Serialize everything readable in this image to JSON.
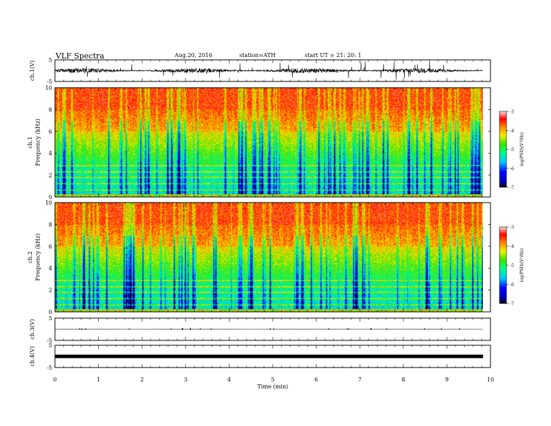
{
  "header": {
    "title": "VLF  Spectra",
    "date": "Aug.20, 2016",
    "station": "station=ATH",
    "start": "start  UT =    21: 20: 1"
  },
  "chart_data": {
    "type": "heatmap",
    "x_axis": {
      "label": "Time  (min)",
      "range": [
        0,
        10
      ],
      "ticks": [
        "0",
        "1",
        "2",
        "3",
        "4",
        "5",
        "6",
        "7",
        "8",
        "9",
        "10"
      ],
      "data_extent": [
        0,
        9.83
      ]
    },
    "panels": [
      {
        "id": "ch1_waveform",
        "type": "line",
        "ylabel": "ch.1(V)",
        "ylim": [
          -5,
          5
        ],
        "yticks": [
          "5",
          "-5"
        ],
        "level": 0,
        "amplitude": 2.2
      },
      {
        "id": "ch1_spectrogram",
        "type": "heatmap",
        "ylabel_top": "ch.1",
        "ylabel": "Frequency  (kHz)",
        "ylim": [
          0,
          10
        ],
        "yticks": [
          "0",
          "2",
          "4",
          "6",
          "8",
          "10"
        ],
        "colorbar": {
          "label": "log(PSD)(V²/Hz)",
          "range": [
            -7,
            -3
          ],
          "ticks": [
            "-3",
            "-4",
            "-5",
            "-6",
            "-7"
          ]
        }
      },
      {
        "id": "ch2_spectrogram",
        "type": "heatmap",
        "ylabel_top": "ch.2",
        "ylabel": "Frequency  (kHz)",
        "ylim": [
          0,
          10
        ],
        "yticks": [
          "0",
          "2",
          "4",
          "6",
          "8",
          "10"
        ],
        "colorbar": {
          "label": "log(PSD)(V²/Hz)",
          "range": [
            -7,
            -3
          ],
          "ticks": [
            "-3",
            "-4",
            "-5",
            "-6",
            "-7"
          ]
        }
      },
      {
        "id": "ch3_waveform",
        "type": "line",
        "ylabel": "ch.3(V)",
        "ylim": [
          -5,
          5
        ],
        "yticks": [
          "5",
          "-5"
        ],
        "level": 0,
        "amplitude": 0.05
      },
      {
        "id": "ch4_waveform",
        "type": "line",
        "ylabel": "ch.4(V)",
        "ylim": [
          -5,
          5
        ],
        "yticks": [
          "5",
          "-5"
        ],
        "level": 0,
        "amplitude": 0
      }
    ]
  }
}
